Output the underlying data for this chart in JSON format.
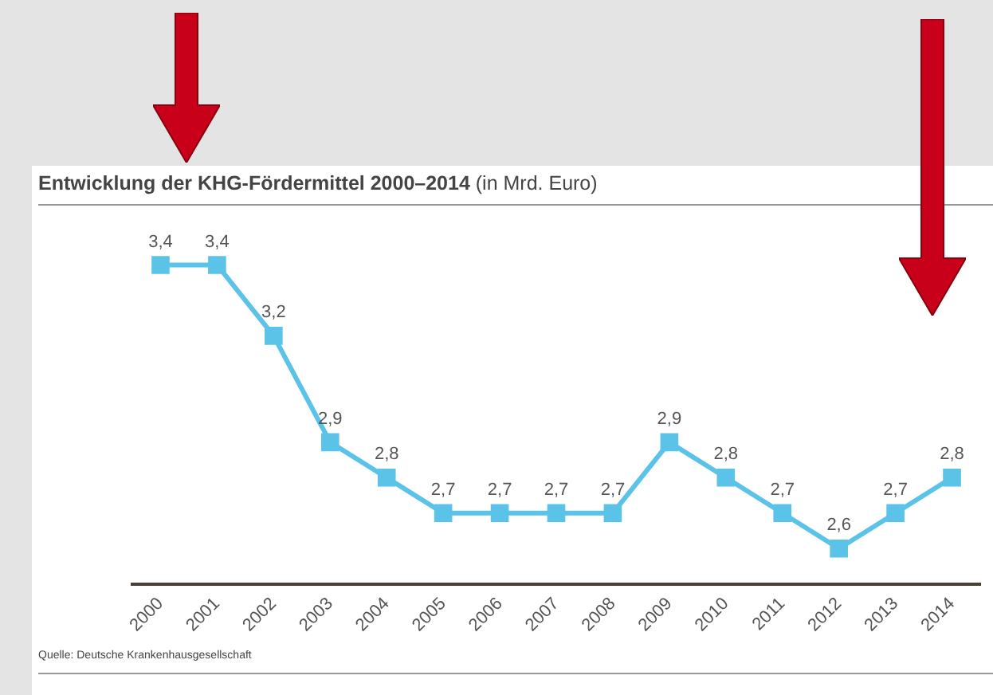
{
  "chart_data": {
    "type": "line",
    "title": "Entwicklung der KHG-Fördermittel  2000–2014",
    "subtitle": "(in Mrd. Euro)",
    "categories": [
      "2000",
      "2001",
      "2002",
      "2003",
      "2004",
      "2005",
      "2006",
      "2007",
      "2008",
      "2009",
      "2010",
      "2011",
      "2012",
      "2013",
      "2014"
    ],
    "series": [
      {
        "color": "#5bc3e8",
        "values": [
          3.4,
          3.4,
          3.2,
          2.9,
          2.8,
          2.7,
          2.7,
          2.7,
          2.7,
          2.9,
          2.8,
          2.7,
          2.6,
          2.7,
          2.8
        ],
        "value_labels": [
          "3,4",
          "3,4",
          "3,2",
          "2,9",
          "2,8",
          "2,7",
          "2,7",
          "2,7",
          "2,7",
          "2,9",
          "2,8",
          "2,7",
          "2,6",
          "2,7",
          "2,8"
        ]
      }
    ],
    "tick_labels": "x",
    "marker": "square",
    "line_style": "solid",
    "grid": false,
    "legend": false,
    "annotations": [
      "Quelle: Deutsche Krankenhausgesellschaft"
    ]
  }
}
